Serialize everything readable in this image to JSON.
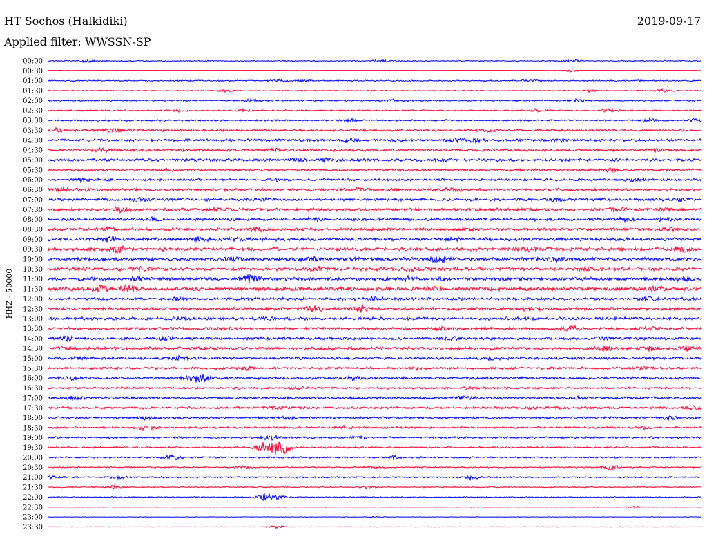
{
  "header": {
    "station": "HT Sochos (Halkidiki)",
    "date": "2019-09-17",
    "filter": "Applied filter: WWSSN-SP"
  },
  "chart_data": {
    "type": "line",
    "title": "HT Sochos (Halkidiki)",
    "subtitle": "Applied filter: WWSSN-SP",
    "ylabel": "HHZ - 50000",
    "xlabel": "",
    "grid": false,
    "colors": {
      "even": "#0000ff",
      "odd": "#ff0033"
    },
    "rows": [
      {
        "label": "00:00",
        "level": 0.2,
        "events": [
          [
            0.06,
            0.6
          ],
          [
            0.51,
            0.6
          ],
          [
            0.8,
            0.4
          ]
        ]
      },
      {
        "label": "00:30",
        "level": 0.05,
        "events": [
          [
            0.8,
            0.4
          ]
        ]
      },
      {
        "label": "01:00",
        "level": 0.25,
        "events": [
          [
            0.35,
            0.5
          ],
          [
            0.39,
            0.4
          ],
          [
            0.74,
            0.6
          ]
        ]
      },
      {
        "label": "01:30",
        "level": 0.2,
        "events": [
          [
            0.27,
            0.6
          ],
          [
            0.83,
            0.6
          ],
          [
            0.94,
            0.5
          ]
        ]
      },
      {
        "label": "02:00",
        "level": 0.3,
        "events": [
          [
            0.31,
            0.5
          ],
          [
            0.53,
            0.4
          ],
          [
            0.81,
            0.4
          ]
        ]
      },
      {
        "label": "02:30",
        "level": 0.3,
        "events": [
          [
            0.2,
            0.4
          ],
          [
            0.3,
            0.4
          ],
          [
            0.75,
            0.4
          ],
          [
            0.86,
            0.5
          ]
        ]
      },
      {
        "label": "03:00",
        "level": 0.35,
        "events": [
          [
            0.46,
            0.6
          ],
          [
            0.92,
            0.7
          ],
          [
            0.99,
            0.6
          ]
        ]
      },
      {
        "label": "03:30",
        "level": 0.45,
        "events": [
          [
            0.01,
            0.8
          ],
          [
            0.09,
            0.7
          ],
          [
            0.11,
            0.5
          ],
          [
            0.67,
            0.5
          ]
        ]
      },
      {
        "label": "04:00",
        "level": 0.55,
        "events": [
          [
            0.46,
            0.7
          ],
          [
            0.62,
            0.9
          ],
          [
            0.65,
            0.8
          ],
          [
            0.78,
            0.6
          ]
        ]
      },
      {
        "label": "04:30",
        "level": 0.55,
        "events": [
          [
            0.08,
            0.8
          ],
          [
            0.35,
            0.6
          ],
          [
            0.93,
            0.5
          ]
        ]
      },
      {
        "label": "05:00",
        "level": 0.6,
        "events": [
          [
            0.38,
            0.6
          ],
          [
            0.43,
            0.7
          ],
          [
            0.6,
            0.6
          ]
        ]
      },
      {
        "label": "05:30",
        "level": 0.5,
        "events": [
          [
            0.18,
            0.5
          ],
          [
            0.86,
            0.8
          ]
        ]
      },
      {
        "label": "06:00",
        "level": 0.5,
        "events": [
          [
            0.05,
            0.6
          ],
          [
            0.35,
            0.6
          ],
          [
            0.9,
            0.6
          ]
        ]
      },
      {
        "label": "06:30",
        "level": 0.6,
        "events": [
          [
            0.02,
            0.7
          ],
          [
            0.05,
            0.6
          ],
          [
            0.47,
            0.7
          ],
          [
            0.62,
            0.6
          ]
        ]
      },
      {
        "label": "07:00",
        "level": 0.6,
        "events": [
          [
            0.14,
            0.7
          ],
          [
            0.33,
            0.6
          ],
          [
            0.78,
            0.7
          ],
          [
            0.97,
            0.6
          ]
        ]
      },
      {
        "label": "07:30",
        "level": 0.65,
        "events": [
          [
            0.11,
            0.8
          ],
          [
            0.26,
            0.6
          ],
          [
            0.87,
            0.8
          ],
          [
            0.94,
            0.7
          ]
        ]
      },
      {
        "label": "08:00",
        "level": 0.6,
        "events": [
          [
            0.16,
            0.8
          ],
          [
            0.41,
            0.6
          ],
          [
            0.88,
            0.8
          ],
          [
            0.95,
            0.6
          ]
        ]
      },
      {
        "label": "08:30",
        "level": 0.65,
        "events": [
          [
            0.09,
            0.7
          ],
          [
            0.32,
            0.8
          ],
          [
            0.64,
            0.6
          ],
          [
            0.95,
            0.6
          ]
        ]
      },
      {
        "label": "09:00",
        "level": 0.7,
        "events": [
          [
            0.09,
            0.9
          ],
          [
            0.23,
            0.8
          ],
          [
            0.29,
            0.7
          ],
          [
            0.62,
            0.6
          ]
        ]
      },
      {
        "label": "09:30",
        "level": 0.75,
        "events": [
          [
            0.11,
            1.5
          ],
          [
            0.73,
            1.0
          ],
          [
            0.97,
            0.9
          ]
        ]
      },
      {
        "label": "10:00",
        "level": 0.7,
        "events": [
          [
            0.4,
            0.7
          ],
          [
            0.6,
            1.3
          ],
          [
            0.78,
            1.0
          ],
          [
            0.28,
            0.6
          ]
        ]
      },
      {
        "label": "10:30",
        "level": 0.7,
        "events": [
          [
            0.14,
            0.7
          ],
          [
            0.41,
            0.8
          ],
          [
            0.82,
            0.7
          ],
          [
            0.56,
            0.6
          ]
        ]
      },
      {
        "label": "11:00",
        "level": 0.7,
        "events": [
          [
            0.31,
            1.6
          ],
          [
            0.14,
            0.7
          ],
          [
            0.55,
            0.8
          ],
          [
            0.97,
            0.8
          ]
        ]
      },
      {
        "label": "11:30",
        "level": 0.75,
        "events": [
          [
            0.08,
            1.1
          ],
          [
            0.12,
            1.5
          ],
          [
            0.59,
            0.7
          ],
          [
            0.93,
            0.8
          ]
        ]
      },
      {
        "label": "12:00",
        "level": 0.6,
        "events": [
          [
            0.2,
            0.6
          ],
          [
            0.5,
            0.6
          ],
          [
            0.92,
            0.6
          ]
        ]
      },
      {
        "label": "12:30",
        "level": 0.65,
        "events": [
          [
            0.41,
            1.2
          ],
          [
            0.48,
            0.9
          ],
          [
            0.74,
            0.6
          ]
        ]
      },
      {
        "label": "13:00",
        "level": 0.6,
        "events": [
          [
            0.2,
            0.7
          ],
          [
            0.33,
            0.7
          ],
          [
            0.73,
            0.6
          ]
        ]
      },
      {
        "label": "13:30",
        "level": 0.6,
        "events": [
          [
            0.6,
            0.7
          ],
          [
            0.8,
            1.1
          ],
          [
            0.92,
            0.6
          ]
        ]
      },
      {
        "label": "14:00",
        "level": 0.6,
        "events": [
          [
            0.03,
            0.8
          ],
          [
            0.18,
            0.6
          ],
          [
            0.62,
            0.7
          ],
          [
            0.85,
            0.7
          ]
        ]
      },
      {
        "label": "14:30",
        "level": 0.65,
        "events": [
          [
            0.03,
            0.8
          ],
          [
            0.85,
            1.1
          ],
          [
            0.92,
            0.8
          ],
          [
            0.98,
            0.8
          ]
        ]
      },
      {
        "label": "15:00",
        "level": 0.55,
        "events": [
          [
            0.05,
            0.6
          ],
          [
            0.2,
            0.6
          ],
          [
            0.68,
            0.6
          ]
        ]
      },
      {
        "label": "15:30",
        "level": 0.5,
        "events": [
          [
            0.3,
            0.6
          ],
          [
            0.56,
            0.6
          ],
          [
            0.9,
            0.6
          ]
        ]
      },
      {
        "label": "16:00",
        "level": 0.55,
        "events": [
          [
            0.04,
            0.7
          ],
          [
            0.22,
            1.3
          ],
          [
            0.24,
            1.4
          ],
          [
            0.47,
            0.7
          ]
        ]
      },
      {
        "label": "16:30",
        "level": 0.45,
        "events": [
          [
            0.38,
            0.6
          ],
          [
            0.65,
            0.5
          ]
        ]
      },
      {
        "label": "17:00",
        "level": 0.5,
        "events": [
          [
            0.04,
            0.7
          ],
          [
            0.64,
            0.7
          ],
          [
            0.81,
            0.6
          ]
        ]
      },
      {
        "label": "17:30",
        "level": 0.5,
        "events": [
          [
            0.35,
            0.6
          ],
          [
            0.74,
            0.7
          ],
          [
            0.99,
            0.6
          ]
        ]
      },
      {
        "label": "18:00",
        "level": 0.45,
        "events": [
          [
            0.15,
            0.6
          ],
          [
            0.37,
            0.5
          ],
          [
            0.95,
            0.7
          ]
        ]
      },
      {
        "label": "18:30",
        "level": 0.4,
        "events": [
          [
            0.15,
            0.8
          ],
          [
            0.45,
            0.5
          ],
          [
            0.91,
            0.5
          ]
        ]
      },
      {
        "label": "19:00",
        "level": 0.4,
        "events": [
          [
            0.34,
            0.8
          ],
          [
            0.48,
            0.5
          ]
        ]
      },
      {
        "label": "19:30",
        "level": 0.35,
        "events": [
          [
            0.33,
            2.0
          ],
          [
            0.36,
            1.8
          ],
          [
            0.35,
            1.9
          ]
        ]
      },
      {
        "label": "20:00",
        "level": 0.35,
        "events": [
          [
            0.19,
            0.8
          ],
          [
            0.53,
            0.5
          ]
        ]
      },
      {
        "label": "20:30",
        "level": 0.25,
        "events": [
          [
            0.3,
            0.6
          ],
          [
            0.5,
            0.5
          ],
          [
            0.86,
            0.9
          ]
        ]
      },
      {
        "label": "21:00",
        "level": 0.3,
        "events": [
          [
            0.01,
            0.8
          ],
          [
            0.11,
            0.7
          ],
          [
            0.65,
            0.7
          ]
        ]
      },
      {
        "label": "21:30",
        "level": 0.2,
        "events": [
          [
            0.1,
            0.6
          ],
          [
            0.49,
            0.5
          ]
        ]
      },
      {
        "label": "22:00",
        "level": 0.2,
        "events": [
          [
            0.33,
            1.5
          ],
          [
            0.35,
            1.1
          ]
        ]
      },
      {
        "label": "22:30",
        "level": 0.1,
        "events": [
          [
            0.9,
            0.3
          ]
        ]
      },
      {
        "label": "23:00",
        "level": 0.08,
        "events": [
          [
            0.5,
            0.3
          ]
        ]
      },
      {
        "label": "23:30",
        "level": 0.08,
        "events": [
          [
            0.35,
            0.8
          ]
        ]
      }
    ]
  }
}
